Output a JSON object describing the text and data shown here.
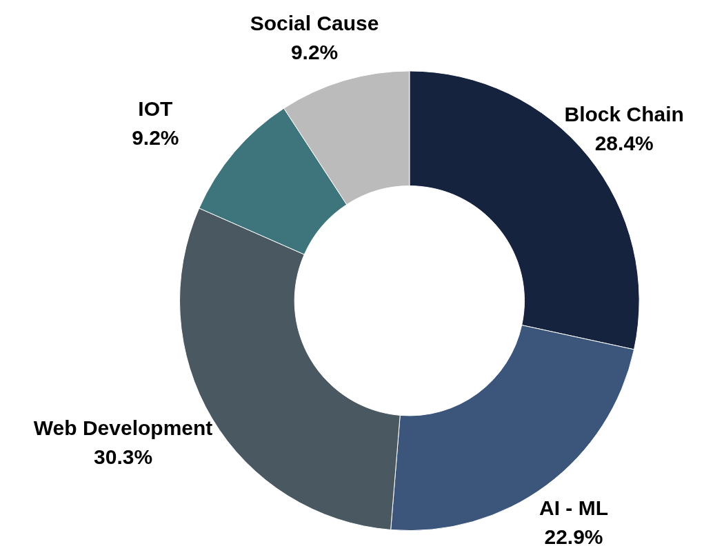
{
  "chart_data": {
    "type": "donut",
    "categories": [
      "Block Chain",
      "AI - ML",
      "Web Development",
      "IOT",
      "Social Cause"
    ],
    "values": [
      28.4,
      22.9,
      30.3,
      9.2,
      9.2
    ],
    "colors": [
      "#16233f",
      "#3c557a",
      "#4a5961",
      "#3e747c",
      "#bbbbbb"
    ],
    "value_labels": [
      "28.4%",
      "22.9%",
      "30.3%",
      "9.2%",
      "9.2%"
    ],
    "legend": false
  }
}
